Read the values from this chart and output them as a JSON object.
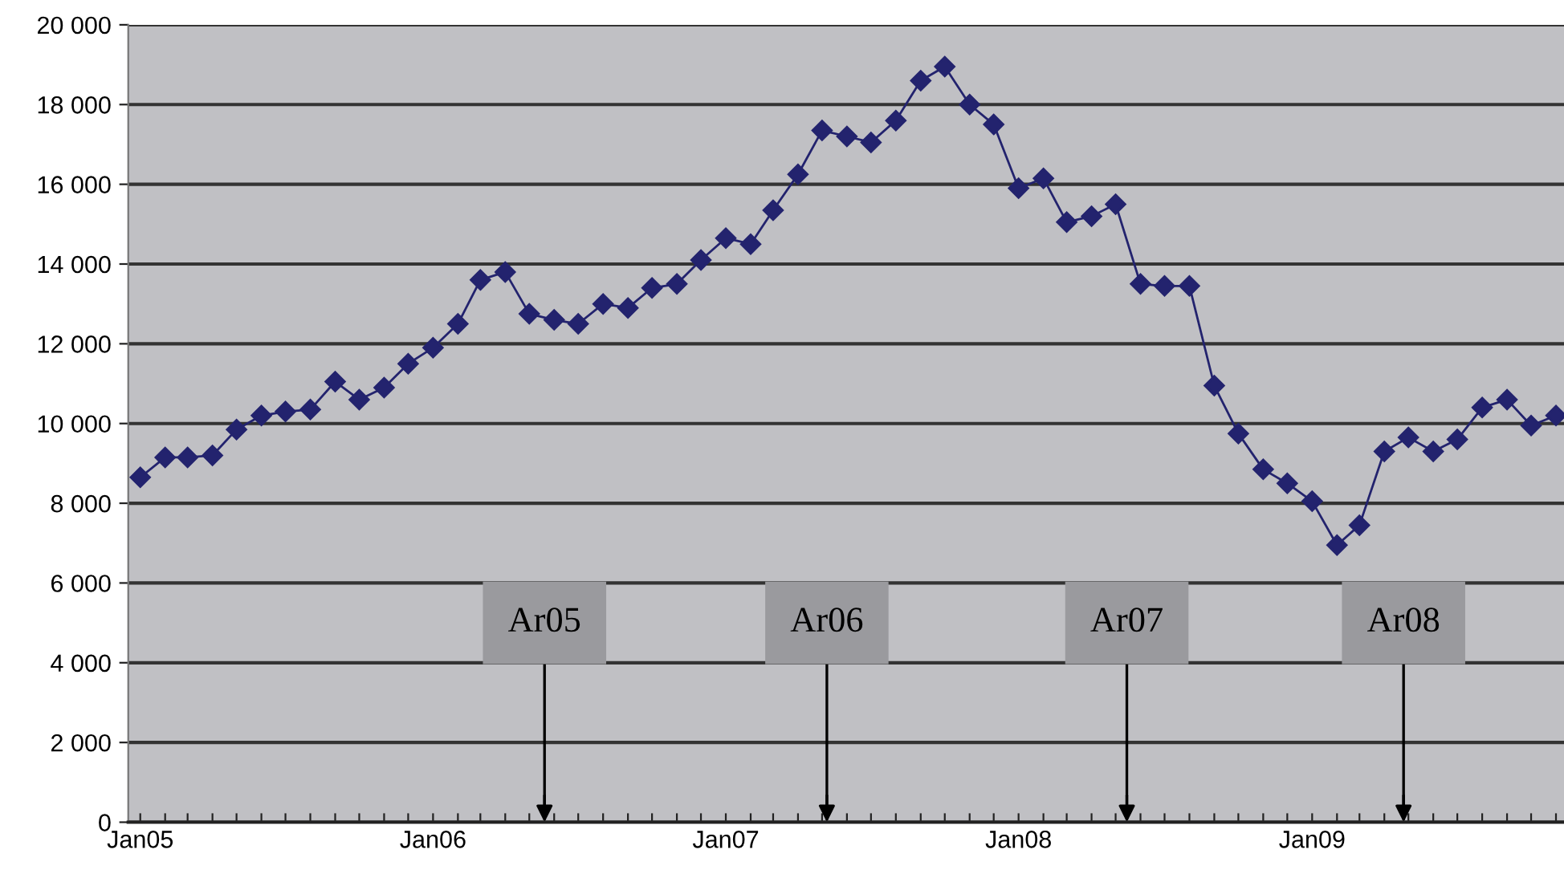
{
  "chart_data": {
    "type": "line",
    "x": [
      "2005-01",
      "2005-02",
      "2005-03",
      "2005-04",
      "2005-05",
      "2005-06",
      "2005-07",
      "2005-08",
      "2005-09",
      "2005-10",
      "2005-11",
      "2005-12",
      "2006-01",
      "2006-02",
      "2006-03",
      "2006-04",
      "2006-05",
      "2006-06",
      "2006-07",
      "2006-08",
      "2006-09",
      "2006-10",
      "2006-11",
      "2006-12",
      "2007-01",
      "2007-02",
      "2007-03",
      "2007-04",
      "2007-05",
      "2007-06",
      "2007-07",
      "2007-08",
      "2007-09",
      "2007-10",
      "2007-11",
      "2007-12",
      "2008-01",
      "2008-02",
      "2008-03",
      "2008-04",
      "2008-05",
      "2008-06",
      "2008-07",
      "2008-08",
      "2008-09",
      "2008-10",
      "2008-11",
      "2008-12",
      "2009-01",
      "2009-02",
      "2009-03",
      "2009-04",
      "2009-05",
      "2009-06",
      "2009-07",
      "2009-08",
      "2009-09",
      "2009-10",
      "2009-11"
    ],
    "series": [
      {
        "color": "#23236e",
        "values": [
          8650,
          9150,
          9150,
          9200,
          9850,
          10200,
          10300,
          10350,
          11050,
          10600,
          10900,
          11500,
          11900,
          12500,
          13600,
          13800,
          12750,
          12600,
          12500,
          13000,
          12900,
          13400,
          13500,
          14100,
          14650,
          14500,
          15350,
          16250,
          17350,
          17200,
          17050,
          17600,
          18600,
          18950,
          18000,
          17500,
          15900,
          16150,
          15050,
          15200,
          15500,
          13500,
          13450,
          13450,
          10950,
          9750,
          8850,
          8500,
          8050,
          6950,
          7450,
          9300,
          9650,
          9300,
          9600,
          10400,
          10600,
          9950,
          10200
        ]
      }
    ],
    "marker": "diamond",
    "line_style": "solid",
    "grid": "y",
    "legend": false,
    "xlim": [
      "2004-12-17",
      "2009-11-11"
    ],
    "xticks": [
      {
        "value": "2005-01",
        "label": "Jan05"
      },
      {
        "value": "2005-02",
        "label": null
      },
      {
        "value": "2005-03",
        "label": null
      },
      {
        "value": "2005-04",
        "label": null
      },
      {
        "value": "2005-05",
        "label": null
      },
      {
        "value": "2005-06",
        "label": null
      },
      {
        "value": "2005-07",
        "label": null
      },
      {
        "value": "2005-08",
        "label": null
      },
      {
        "value": "2005-09",
        "label": null
      },
      {
        "value": "2005-10",
        "label": null
      },
      {
        "value": "2005-11",
        "label": null
      },
      {
        "value": "2005-12",
        "label": null
      },
      {
        "value": "2006-01",
        "label": "Jan06"
      },
      {
        "value": "2006-02",
        "label": null
      },
      {
        "value": "2006-03",
        "label": null
      },
      {
        "value": "2006-04",
        "label": null
      },
      {
        "value": "2006-05",
        "label": null
      },
      {
        "value": "2006-06",
        "label": null
      },
      {
        "value": "2006-07",
        "label": null
      },
      {
        "value": "2006-08",
        "label": null
      },
      {
        "value": "2006-09",
        "label": null
      },
      {
        "value": "2006-10",
        "label": null
      },
      {
        "value": "2006-11",
        "label": null
      },
      {
        "value": "2006-12",
        "label": null
      },
      {
        "value": "2007-01",
        "label": "Jan07"
      },
      {
        "value": "2007-02",
        "label": null
      },
      {
        "value": "2007-03",
        "label": null
      },
      {
        "value": "2007-04",
        "label": null
      },
      {
        "value": "2007-05",
        "label": null
      },
      {
        "value": "2007-06",
        "label": null
      },
      {
        "value": "2007-07",
        "label": null
      },
      {
        "value": "2007-08",
        "label": null
      },
      {
        "value": "2007-09",
        "label": null
      },
      {
        "value": "2007-10",
        "label": null
      },
      {
        "value": "2007-11",
        "label": null
      },
      {
        "value": "2007-12",
        "label": null
      },
      {
        "value": "2008-01",
        "label": "Jan08"
      },
      {
        "value": "2008-02",
        "label": null
      },
      {
        "value": "2008-03",
        "label": null
      },
      {
        "value": "2008-04",
        "label": null
      },
      {
        "value": "2008-05",
        "label": null
      },
      {
        "value": "2008-06",
        "label": null
      },
      {
        "value": "2008-07",
        "label": null
      },
      {
        "value": "2008-08",
        "label": null
      },
      {
        "value": "2008-09",
        "label": null
      },
      {
        "value": "2008-10",
        "label": null
      },
      {
        "value": "2008-11",
        "label": null
      },
      {
        "value": "2008-12",
        "label": null
      },
      {
        "value": "2009-01",
        "label": "Jan09"
      },
      {
        "value": "2009-02",
        "label": null
      },
      {
        "value": "2009-03",
        "label": null
      },
      {
        "value": "2009-04",
        "label": null
      },
      {
        "value": "2009-05",
        "label": null
      },
      {
        "value": "2009-06",
        "label": null
      },
      {
        "value": "2009-07",
        "label": null
      },
      {
        "value": "2009-08",
        "label": null
      },
      {
        "value": "2009-09",
        "label": null
      },
      {
        "value": "2009-10",
        "label": null
      },
      {
        "value": "2009-11",
        "label": null
      }
    ],
    "ylim": [
      0,
      20000
    ],
    "yticks": [
      0,
      {
        "value": 2000,
        "label": "2 000"
      },
      {
        "value": 4000,
        "label": "4 000"
      },
      {
        "value": 6000,
        "label": "6 000"
      },
      {
        "value": 8000,
        "label": "8 000"
      },
      {
        "value": 10000,
        "label": "10 000"
      },
      {
        "value": 12000,
        "label": "12 000"
      },
      {
        "value": 14000,
        "label": "14 000"
      },
      {
        "value": 16000,
        "label": "16 000"
      },
      {
        "value": 18000,
        "label": "18 000"
      },
      {
        "value": 20000,
        "label": "20 000"
      }
    ],
    "ref_lines": [
      {
        "axis": "x",
        "value": "2006-05-20",
        "label": "Ar05",
        "color": "#000000"
      },
      {
        "axis": "x",
        "value": "2007-05-07",
        "label": "Ar06",
        "color": "#000000"
      },
      {
        "axis": "x",
        "value": "2008-05-15",
        "label": "Ar07",
        "color": "#000000"
      },
      {
        "axis": "x",
        "value": "2009-04-25",
        "label": "Ar08",
        "color": "#000000"
      }
    ]
  }
}
